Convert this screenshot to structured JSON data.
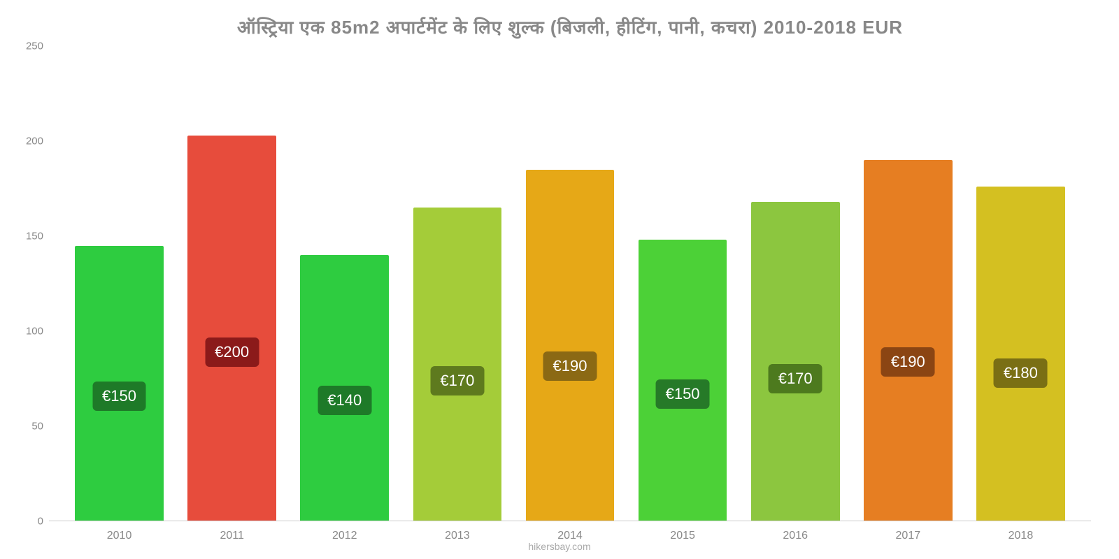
{
  "chart": {
    "type": "bar",
    "title": "ऑस्ट्रिया   एक   85m2 अपार्टमेंट   के   लिए   शुल्क   (बिजली, हीटिंग, पानी, कचरा) 2010-2018 EUR",
    "title_color": "#888888",
    "title_fontsize": 26,
    "background_color": "#ffffff",
    "ylim": [
      0,
      250
    ],
    "ytick_step": 50,
    "yticks": [
      {
        "value": 0,
        "label": "0"
      },
      {
        "value": 50,
        "label": "50"
      },
      {
        "value": 100,
        "label": "100"
      },
      {
        "value": 150,
        "label": "150"
      },
      {
        "value": 200,
        "label": "200"
      },
      {
        "value": 250,
        "label": "250"
      }
    ],
    "axis_label_color": "#888888",
    "axis_label_fontsize": 15,
    "bar_width_pct": 85,
    "label_box_radius": 6,
    "label_fontsize": 22,
    "label_text_color": "#ffffff",
    "label_vertical_position_pct": 40,
    "categories": [
      "2010",
      "2011",
      "2012",
      "2013",
      "2014",
      "2015",
      "2016",
      "2017",
      "2018"
    ],
    "values": [
      145,
      203,
      140,
      165,
      185,
      148,
      168,
      190,
      176
    ],
    "display_labels": [
      "€150",
      "€200",
      "€140",
      "€170",
      "€190",
      "€150",
      "€170",
      "€190",
      "€180"
    ],
    "bar_colors": [
      "#2ecc40",
      "#e74c3c",
      "#2ecc40",
      "#a4cc39",
      "#e6a817",
      "#4cd137",
      "#8cc63f",
      "#e67e22",
      "#d4c021"
    ],
    "label_bg_colors": [
      "#1e7a28",
      "#8b1a1a",
      "#1e7a28",
      "#5e7a1e",
      "#8b6914",
      "#267a28",
      "#4d7a1e",
      "#8b4513",
      "#7a6f14"
    ],
    "attribution": "hikersbay.com",
    "attribution_color": "#aaaaaa"
  }
}
